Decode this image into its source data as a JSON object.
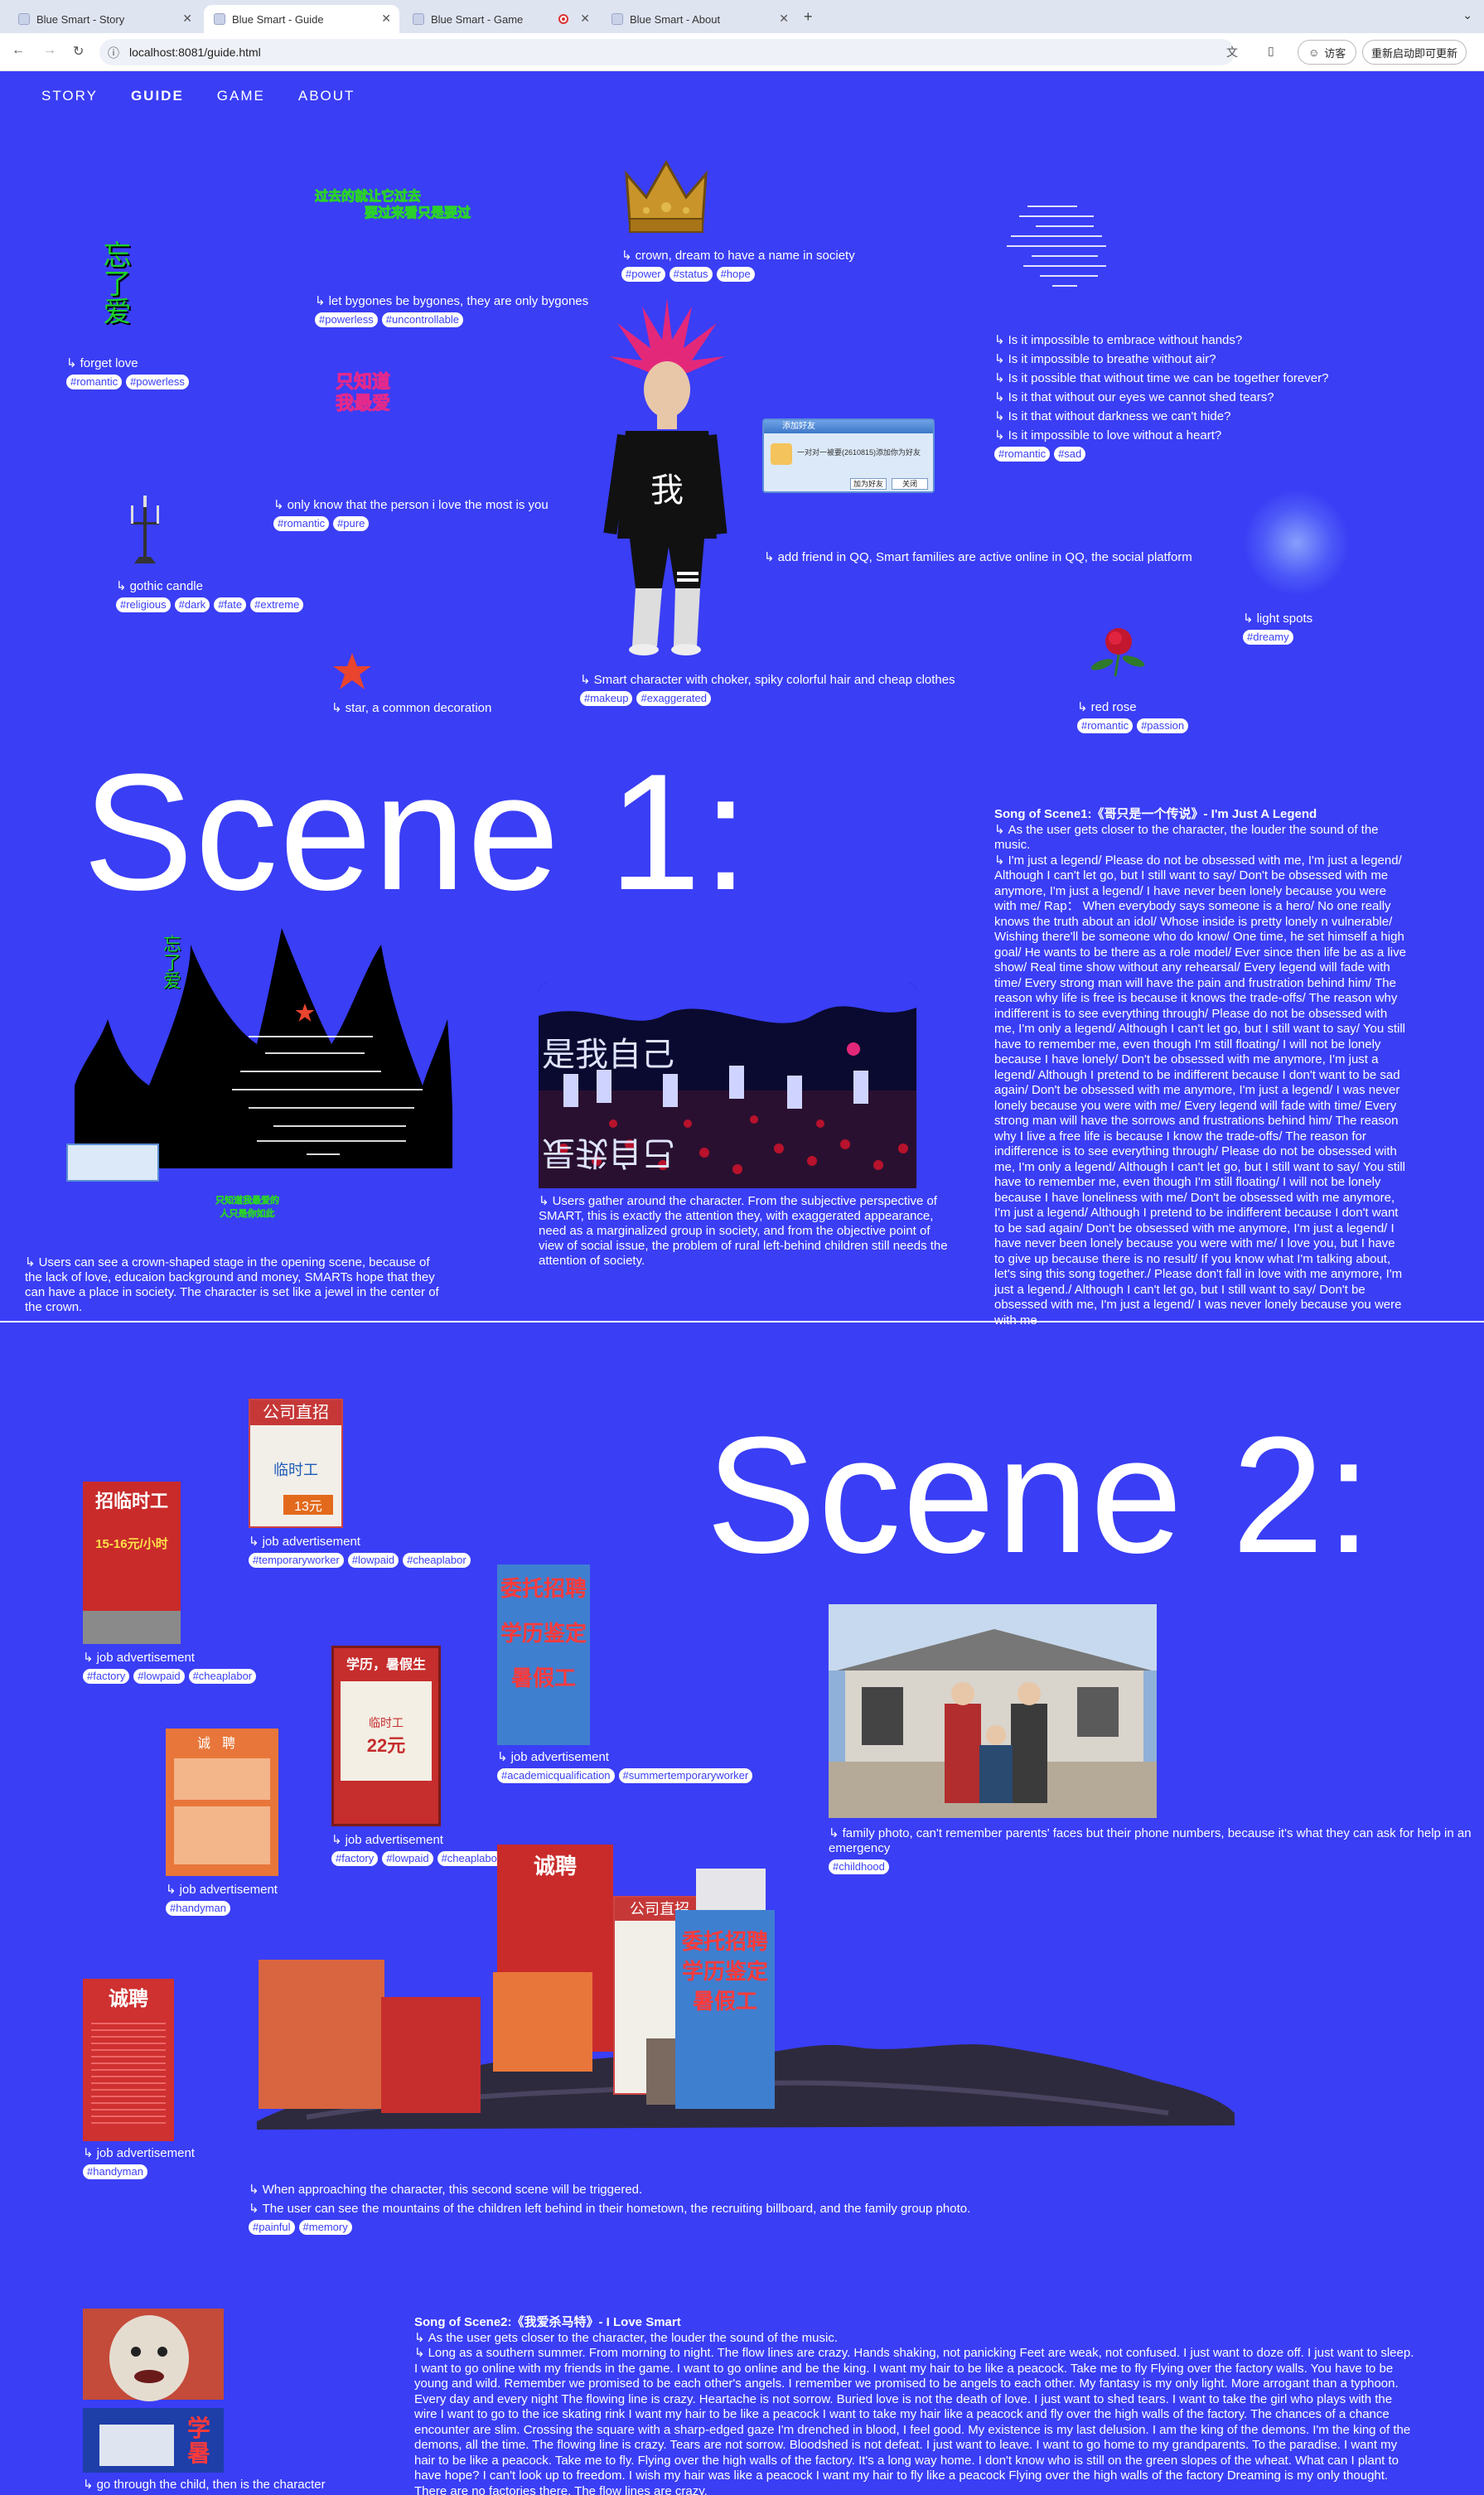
{
  "browser": {
    "tabs": [
      {
        "title": "Blue Smart - Story"
      },
      {
        "title": "Blue Smart - Guide"
      },
      {
        "title": "Blue Smart - Game"
      },
      {
        "title": "Blue Smart - About"
      }
    ],
    "url": "localhost:8081/guide.html",
    "guest_label": "访客",
    "restart_label": "重新启动即可更新"
  },
  "nav": [
    "STORY",
    "GUIDE",
    "GAME",
    "ABOUT"
  ],
  "items_top": {
    "forget_love": {
      "caption": "forget love",
      "tags": [
        "#romantic",
        "#powerless"
      ],
      "art": "忘了爱"
    },
    "bygones": {
      "caption": "let bygones be bygones, they are only bygones",
      "tags": [
        "#powerless",
        "#uncontrollable"
      ],
      "art1": "过去的就让它过去",
      "art2": "要过来看只是要过"
    },
    "crown": {
      "caption": "crown, dream to have a name in society",
      "tags": [
        "#power",
        "#status",
        "#hope"
      ]
    },
    "questions": {
      "captions": [
        "Is it impossible to embrace without hands?",
        "Is it impossible to breathe without air?",
        "Is it possible that without time we can be together forever?",
        "Is it that without our eyes we cannot shed tears?",
        "Is it that without darkness we can't hide?",
        "Is it impossible to love without a heart?"
      ],
      "tags": [
        "#romantic",
        "#sad"
      ]
    },
    "only_know": {
      "caption": "only know that the person i love the most is you",
      "tags": [
        "#romantic",
        "#pure"
      ],
      "art1": "只知道",
      "art2": "我最爱"
    },
    "candle": {
      "caption": "gothic candle",
      "tags": [
        "#religious",
        "#dark",
        "#fate",
        "#extreme"
      ]
    },
    "qq": {
      "caption": "add friend in QQ, Smart families are active online in QQ, the social platform",
      "window_title": "添加好友",
      "window_text": "一对对一被要(2610815)添加你为好友",
      "btn1": "加为好友",
      "btn2": "关闭"
    },
    "character": {
      "caption": "Smart character with choker, spiky colorful hair and cheap clothes",
      "tags": [
        "#makeup",
        "#exaggerated"
      ],
      "shirt_text": "我"
    },
    "light_spots": {
      "caption": "light spots",
      "tags": [
        "#dreamy"
      ]
    },
    "star": {
      "caption": "star, a common decoration"
    },
    "rose": {
      "caption": "red rose",
      "tags": [
        "#romantic",
        "#passion"
      ]
    }
  },
  "scene1": {
    "title": "Scene 1:",
    "caption_left": "Users can see a crown-shaped stage in the opening scene, because of the lack of love, educaion background and money, SMARTs hope that they can have a place in society. The character is set like a jewel in the center of the crown.",
    "caption_mid": "Users gather around the character. From the subjective perspective of SMART, this is exactly the attention they, with exaggerated appearance, need as a marginalized group in society, and from the objective point of view of social issue, the problem of rural left-behind children still needs the attention of society.",
    "song_title": "Song of Scene1:《哥只是一个传说》- I'm Just A Legend",
    "song_note": "As the user gets closer to the character, the louder the sound of the music.",
    "song_lyrics": "I'm just a legend/ Please do not be obsessed with me, I'm just a legend/ Although I can't let go, but I still want to say/ Don't be obsessed with me anymore, I'm just a legend/ I have never been lonely because you were with me/ Rap： When everybody says someone is a hero/ No one really knows the truth about an idol/ Whose inside is pretty lonely n vulnerable/ Wishing there'll be someone who do know/ One time, he set himself a high goal/ He wants to be there as a role model/ Ever since then life be as a live show/ Real time show without any rehearsal/ Every legend will fade with time/ Every strong man will have the pain and frustration behind him/ The reason why life is free is because it knows the trade-offs/ The reason why indifferent is to see everything through/ Please do not be obsessed with me, I'm only a legend/ Although I can't let go, but I still want to say/ You still have to remember me, even though I'm still floating/ I will not be lonely because I have lonely/ Don't be obsessed with me anymore, I'm just a legend/ Although I pretend to be indifferent because I don't want to be sad again/ Don't be obsessed with me anymore, I'm just a legend/ I was never lonely because you were with me/ Every legend will fade with time/ Every strong man will have the sorrows and frustrations behind him/ The reason why I live a free life is because I know the trade-offs/ The reason for indifference is to see everything through/ Please do not be obsessed with me, I'm only a legend/ Although I can't let go, but I still want to say/ You still have to remember me, even though I'm still floating/ I will not be lonely because I have loneliness with me/ Don't be obsessed with me anymore, I'm just a legend/ Although I pretend to be indifferent because I don't want to be sad again/ Don't be obsessed with me anymore, I'm just a legend/ I have never been lonely because you were with me/ I love you, but I have to give up because there is no result/ If you know what I'm talking about, let's sing this song together./ Please don't fall in love with me anymore, I'm just a legend./ Although I can't let go, but I still want to say/ Don't be obsessed with me, I'm just a legend/ I was never lonely because you were with me",
    "stage_label_top": "忘了爱",
    "stage_label_bottom1": "只知道我最爱的",
    "stage_label_bottom2": "人只是你如此",
    "scene_text": "是我自己"
  },
  "scene2": {
    "title": "Scene 2:",
    "job_caption": "job advertisement",
    "ads": [
      {
        "tags": [
          "#temporaryworker",
          "#lowpaid",
          "#cheaplabor"
        ],
        "head": "公司直招",
        "line": "临时工",
        "price": "13元"
      },
      {
        "tags": [
          "#factory",
          "#lowpaid",
          "#cheaplabor"
        ],
        "head": "招临时工",
        "line": "15-16元/小时"
      },
      {
        "tags": [
          "#academicqualification",
          "#summertemporaryworker"
        ],
        "head": "委托招聘",
        "line2": "学历鉴定",
        "line3": "暑假工"
      },
      {
        "tags": [
          "#factory",
          "#lowpaid",
          "#cheaplabor"
        ],
        "head": "学历，暑假生",
        "line": "临时工",
        "price": "22元"
      },
      {
        "tags": [
          "#handyman"
        ],
        "head": "诚聘"
      },
      {
        "tags": [
          "#handyman"
        ],
        "head": "诚聘"
      }
    ],
    "family_caption": "family photo, can't remember parents' faces but their phone numbers, because it's what they can ask for help in an emergency",
    "family_tags": [
      "#childhood"
    ],
    "approach_captions": [
      "When approaching the character, this second scene will be triggered.",
      "The user can see the mountains of the children left behind in their hometown, the recruiting billboard, and the family group photo."
    ],
    "approach_tags": [
      "#painful",
      "#memory"
    ],
    "child_caption": "go through the child, then is the character",
    "song_title": "Song of Scene2:《我爱杀马特》- I Love Smart",
    "song_note": "As the user gets closer to the character, the louder the sound of the music.",
    "song_lyrics": "Long as a southern summer. From morning to night. The flow lines are crazy. Hands shaking, not panicking Feet are weak, not confused. I just want to doze off. I just want to sleep. I want to go online with my friends in the game. I want to go online and be the king. I want my hair to be like a peacock. Take me to fly Flying over the factory walls. You have to be young and wild. Remember we promised to be each other's angels. I remember we promised to be angels to each other. My fantasy is my only light. More arrogant than a typhoon. Every day and every night The flowing line is crazy. Heartache is not sorrow. Buried love is not the death of love. I just want to shed tears. I want to take the girl who plays with the wire I want to go to the ice skating rink I want my hair to be like a peacock I want to take my hair like a peacock and fly over the high walls of the factory. The chances of a chance encounter are slim. Crossing the square with a sharp-edged gaze I'm drenched in blood, I feel good. My existence is my last delusion. I am the king of the demons. I'm the king of the demons, all the time. The flowing line is crazy. Tears are not sorrow. Bloodshed is not defeat. I just want to leave. I want to go home to my grandparents. To the paradise. I want my hair to be like a peacock. Take me to fly. Flying over the high walls of the factory. It's a long way home. I don't know who is still on the green slopes of the wheat. What can I plant to have hope? I can't look up to freedom. I wish my hair was like a peacock I want my hair to fly like a peacock Flying over the high walls of the factory Dreaming is my only thought. There are no factories there. The flow lines are crazy."
  },
  "colors": {
    "background": "#3a3ef5",
    "text": "#ffffff"
  }
}
